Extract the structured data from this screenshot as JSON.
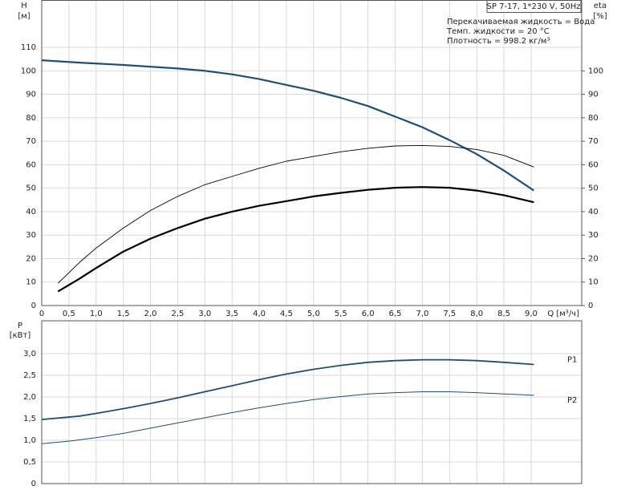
{
  "chart_data": [
    {
      "type": "line",
      "title": "SP 7-17, 1*230 V, 50Hz",
      "annotations": [
        "Перекачиваемая жидкость = Вода",
        "Темп. жидкости = 20 °C",
        "Плотность = 998.2 кг/м³"
      ],
      "y_label": "H",
      "y_unit": "[м]",
      "y2_label": "eta",
      "y2_unit": "[%]",
      "x_label": "Q [м³/ч]",
      "xlim": [
        0,
        9.93
      ],
      "xticks": [
        0,
        {
          "value": 0.5,
          "label": "0,5"
        },
        {
          "value": 1.0,
          "label": "1,0"
        },
        {
          "value": 1.5,
          "label": "1,5"
        },
        {
          "value": 2.0,
          "label": "2,0"
        },
        {
          "value": 2.5,
          "label": "2,5"
        },
        {
          "value": 3.0,
          "label": "3,0"
        },
        {
          "value": 3.5,
          "label": "3,5"
        },
        {
          "value": 4.0,
          "label": "4,0"
        },
        {
          "value": 4.5,
          "label": "4,5"
        },
        {
          "value": 5.0,
          "label": "5,0"
        },
        {
          "value": 5.5,
          "label": "5,5"
        },
        {
          "value": 6.0,
          "label": "6,0"
        },
        {
          "value": 6.5,
          "label": "6,5"
        },
        {
          "value": 7.0,
          "label": "7,0"
        },
        {
          "value": 7.5,
          "label": "7,5"
        },
        {
          "value": 8.0,
          "label": "8,0"
        },
        {
          "value": 8.5,
          "label": "8,5"
        },
        {
          "value": 9.0,
          "label": "9,0"
        }
      ],
      "ylim": [
        0,
        130
      ],
      "yticks": [
        0,
        10,
        20,
        30,
        40,
        50,
        60,
        70,
        80,
        90,
        100,
        110
      ],
      "y2lim": [
        0,
        130
      ],
      "y2ticks": [
        0,
        10,
        20,
        30,
        40,
        50,
        60,
        70,
        80,
        90,
        100
      ],
      "grid": true,
      "series": [
        {
          "color": "#1f4e79",
          "line_width": 2.2,
          "x": [
            0,
            0.7,
            1.5,
            2.5,
            3.0,
            3.5,
            4.0,
            4.5,
            5.0,
            5.5,
            6.0,
            6.5,
            7.0,
            7.5,
            8.0,
            8.5,
            9.05
          ],
          "values": [
            104.5,
            103.5,
            102.5,
            101,
            100,
            98.5,
            96.5,
            94,
            91.5,
            88.5,
            85,
            80.5,
            76,
            70.5,
            64.5,
            57.5,
            49
          ]
        },
        {
          "color": "#000000",
          "line_width": 0.9,
          "axis": "y2",
          "x": [
            0.3,
            0.7,
            1.0,
            1.5,
            2.0,
            2.5,
            3.0,
            3.5,
            4.0,
            4.5,
            5.0,
            5.5,
            6.0,
            6.5,
            7.0,
            7.5,
            8.0,
            8.5,
            9.05
          ],
          "values": [
            9.5,
            18.5,
            24.5,
            33,
            40.5,
            46.5,
            51.5,
            55,
            58.5,
            61.5,
            63.5,
            65.5,
            67,
            68,
            68.2,
            67.8,
            66.5,
            64,
            59
          ]
        },
        {
          "color": "#000000",
          "line_width": 2.2,
          "axis": "y2",
          "x": [
            0.3,
            0.7,
            1.0,
            1.5,
            2.0,
            2.5,
            3.0,
            3.5,
            4.0,
            4.5,
            5.0,
            5.5,
            6.0,
            6.5,
            7.0,
            7.5,
            8.0,
            8.5,
            9.05
          ],
          "values": [
            6,
            11.5,
            16,
            23,
            28.5,
            33,
            37,
            40,
            42.5,
            44.5,
            46.5,
            48,
            49.3,
            50.2,
            50.5,
            50.2,
            49,
            47,
            44
          ]
        }
      ]
    },
    {
      "type": "line",
      "y_label": "P",
      "y_unit": "[кВт]",
      "xlim": [
        0,
        9.93
      ],
      "xticks": [
        0.5,
        1.0,
        1.5,
        2.0,
        2.5,
        3.0,
        3.5,
        4.0,
        4.5,
        5.0,
        5.5,
        6.0,
        6.5,
        7.0,
        7.5,
        8.0,
        8.5,
        9.0
      ],
      "ylim": [
        0,
        3.76
      ],
      "yticks": [
        0,
        {
          "value": 0.5,
          "label": "0,5"
        },
        {
          "value": 1.0,
          "label": "1,0"
        },
        {
          "value": 1.5,
          "label": "1,5"
        },
        {
          "value": 2.0,
          "label": "2,0"
        },
        {
          "value": 2.5,
          "label": "2,5"
        },
        {
          "value": 3.0,
          "label": "3,0"
        }
      ],
      "grid": true,
      "series": [
        {
          "name": "P1",
          "color": "#1f4e79",
          "line_width": 1.8,
          "x": [
            0,
            0.7,
            1.0,
            1.5,
            2.0,
            2.5,
            3.0,
            3.5,
            4.0,
            4.5,
            5.0,
            5.5,
            6.0,
            6.5,
            7.0,
            7.5,
            8.0,
            8.5,
            9.05
          ],
          "values": [
            1.48,
            1.56,
            1.62,
            1.73,
            1.85,
            1.98,
            2.12,
            2.26,
            2.4,
            2.53,
            2.64,
            2.73,
            2.8,
            2.84,
            2.86,
            2.86,
            2.84,
            2.8,
            2.75
          ]
        },
        {
          "name": "P2",
          "color": "#1f4e79",
          "line_width": 1,
          "x": [
            0,
            0.5,
            1.0,
            1.5,
            2.0,
            2.5,
            3.0,
            3.5,
            4.0,
            4.5,
            5.0,
            5.5,
            6.0,
            6.5,
            7.0,
            7.5,
            8.0,
            8.5,
            9.05
          ],
          "values": [
            0.92,
            0.98,
            1.06,
            1.16,
            1.28,
            1.4,
            1.52,
            1.64,
            1.75,
            1.85,
            1.94,
            2.01,
            2.07,
            2.1,
            2.12,
            2.12,
            2.1,
            2.07,
            2.04
          ]
        }
      ]
    }
  ]
}
